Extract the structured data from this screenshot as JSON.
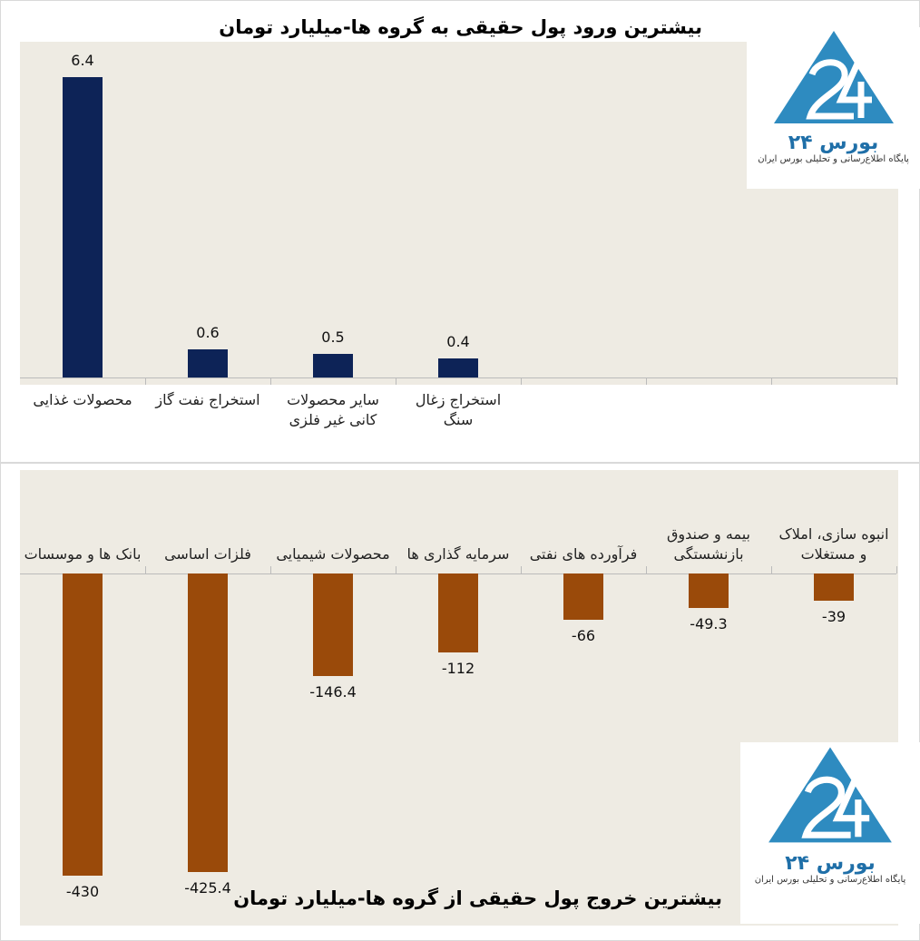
{
  "chart_data": [
    {
      "type": "bar",
      "title": "بیشترین ورود پول حقیقی به گروه ها-میلیارد تومان",
      "categories": [
        "محصولات غذایی",
        "استخراج نفت گاز",
        "سایر محصولات کانی غیر فلزی",
        "استخراج زغال سنگ",
        null,
        null,
        null
      ],
      "values": [
        6.4,
        0.6,
        0.5,
        0.4,
        null,
        null,
        null
      ],
      "color": "#0d2357"
    },
    {
      "type": "bar",
      "title": "بیشترین خروج پول حقیقی از گروه ها-میلیارد تومان",
      "categories": [
        "بانک ها و موسسات",
        "فلزات اساسی",
        "محصولات شیمیایی",
        "سرمایه گذاری ها",
        "فرآورده های نفتی",
        "بیمه و صندوق بازنشستگی",
        "انبوه سازی، املاک و مستغلات"
      ],
      "values": [
        -430,
        -425.4,
        -146.4,
        -112,
        -66,
        -49.3,
        -39
      ],
      "color": "#9a4a0a"
    }
  ],
  "logo": {
    "name": "بورس ۲۴",
    "tagline": "پایگاه اطلاع‌رسانی و تحلیلی بورس ایران"
  }
}
